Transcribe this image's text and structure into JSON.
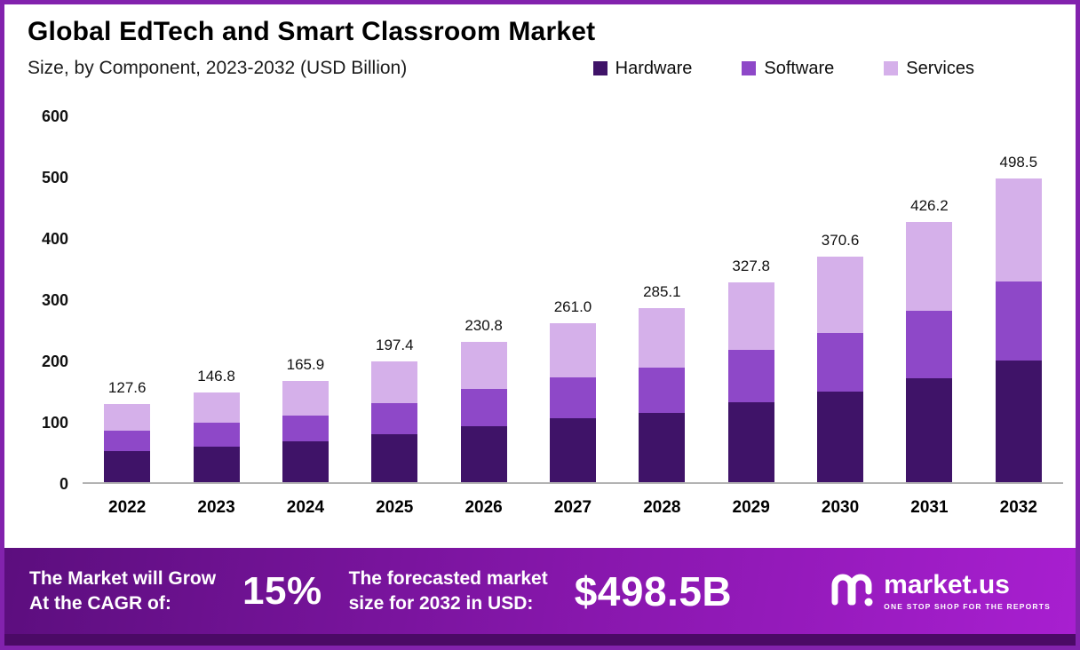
{
  "header": {
    "title": "Global EdTech and Smart Classroom Market",
    "subtitle": "Size, by Component, 2023-2032 (USD Billion)"
  },
  "legend": [
    {
      "label": "Hardware",
      "color": "#3f1368"
    },
    {
      "label": "Software",
      "color": "#8e48c8"
    },
    {
      "label": "Services",
      "color": "#d5b0ea"
    }
  ],
  "chart_data": {
    "type": "bar",
    "stacked": true,
    "title": "Global EdTech and Smart Classroom Market Size, by Component, 2023-2032 (USD Billion)",
    "categories": [
      "2022",
      "2023",
      "2024",
      "2025",
      "2026",
      "2027",
      "2028",
      "2029",
      "2030",
      "2031",
      "2032"
    ],
    "series": [
      {
        "name": "Hardware",
        "color": "#3f1368",
        "values": [
          51.0,
          58.7,
          66.4,
          79.0,
          92.3,
          104.4,
          114.0,
          131.1,
          148.2,
          170.5,
          199.4
        ]
      },
      {
        "name": "Software",
        "color": "#8e48c8",
        "values": [
          33.2,
          38.2,
          43.1,
          51.3,
          60.0,
          67.9,
          74.1,
          85.2,
          96.4,
          110.8,
          129.6
        ]
      },
      {
        "name": "Services",
        "color": "#d5b0ea",
        "values": [
          43.4,
          49.9,
          56.4,
          67.1,
          78.5,
          88.7,
          97.0,
          111.5,
          126.0,
          144.9,
          169.5
        ]
      }
    ],
    "totals": [
      127.6,
      146.8,
      165.9,
      197.4,
      230.8,
      261.0,
      285.1,
      327.8,
      370.6,
      426.2,
      498.5
    ],
    "total_labels": [
      "127.6",
      "146.8",
      "165.9",
      "197.4",
      "230.8",
      "261.0",
      "285.1",
      "327.8",
      "370.6",
      "426.2",
      "498.5"
    ],
    "xlabel": "",
    "ylabel": "",
    "ylim": [
      0,
      600
    ],
    "yticks": [
      0,
      100,
      200,
      300,
      400,
      500,
      600
    ],
    "grid": false,
    "legend_position": "top-right"
  },
  "footer": {
    "cagr_line1": "The Market will Grow",
    "cagr_line2": "At the CAGR of:",
    "cagr_value": "15%",
    "forecast_line1": "The forecasted market",
    "forecast_line2": "size for 2032 in USD:",
    "forecast_value": "$498.5B",
    "brand": "market.us",
    "brand_tagline": "ONE STOP SHOP FOR THE REPORTS"
  }
}
